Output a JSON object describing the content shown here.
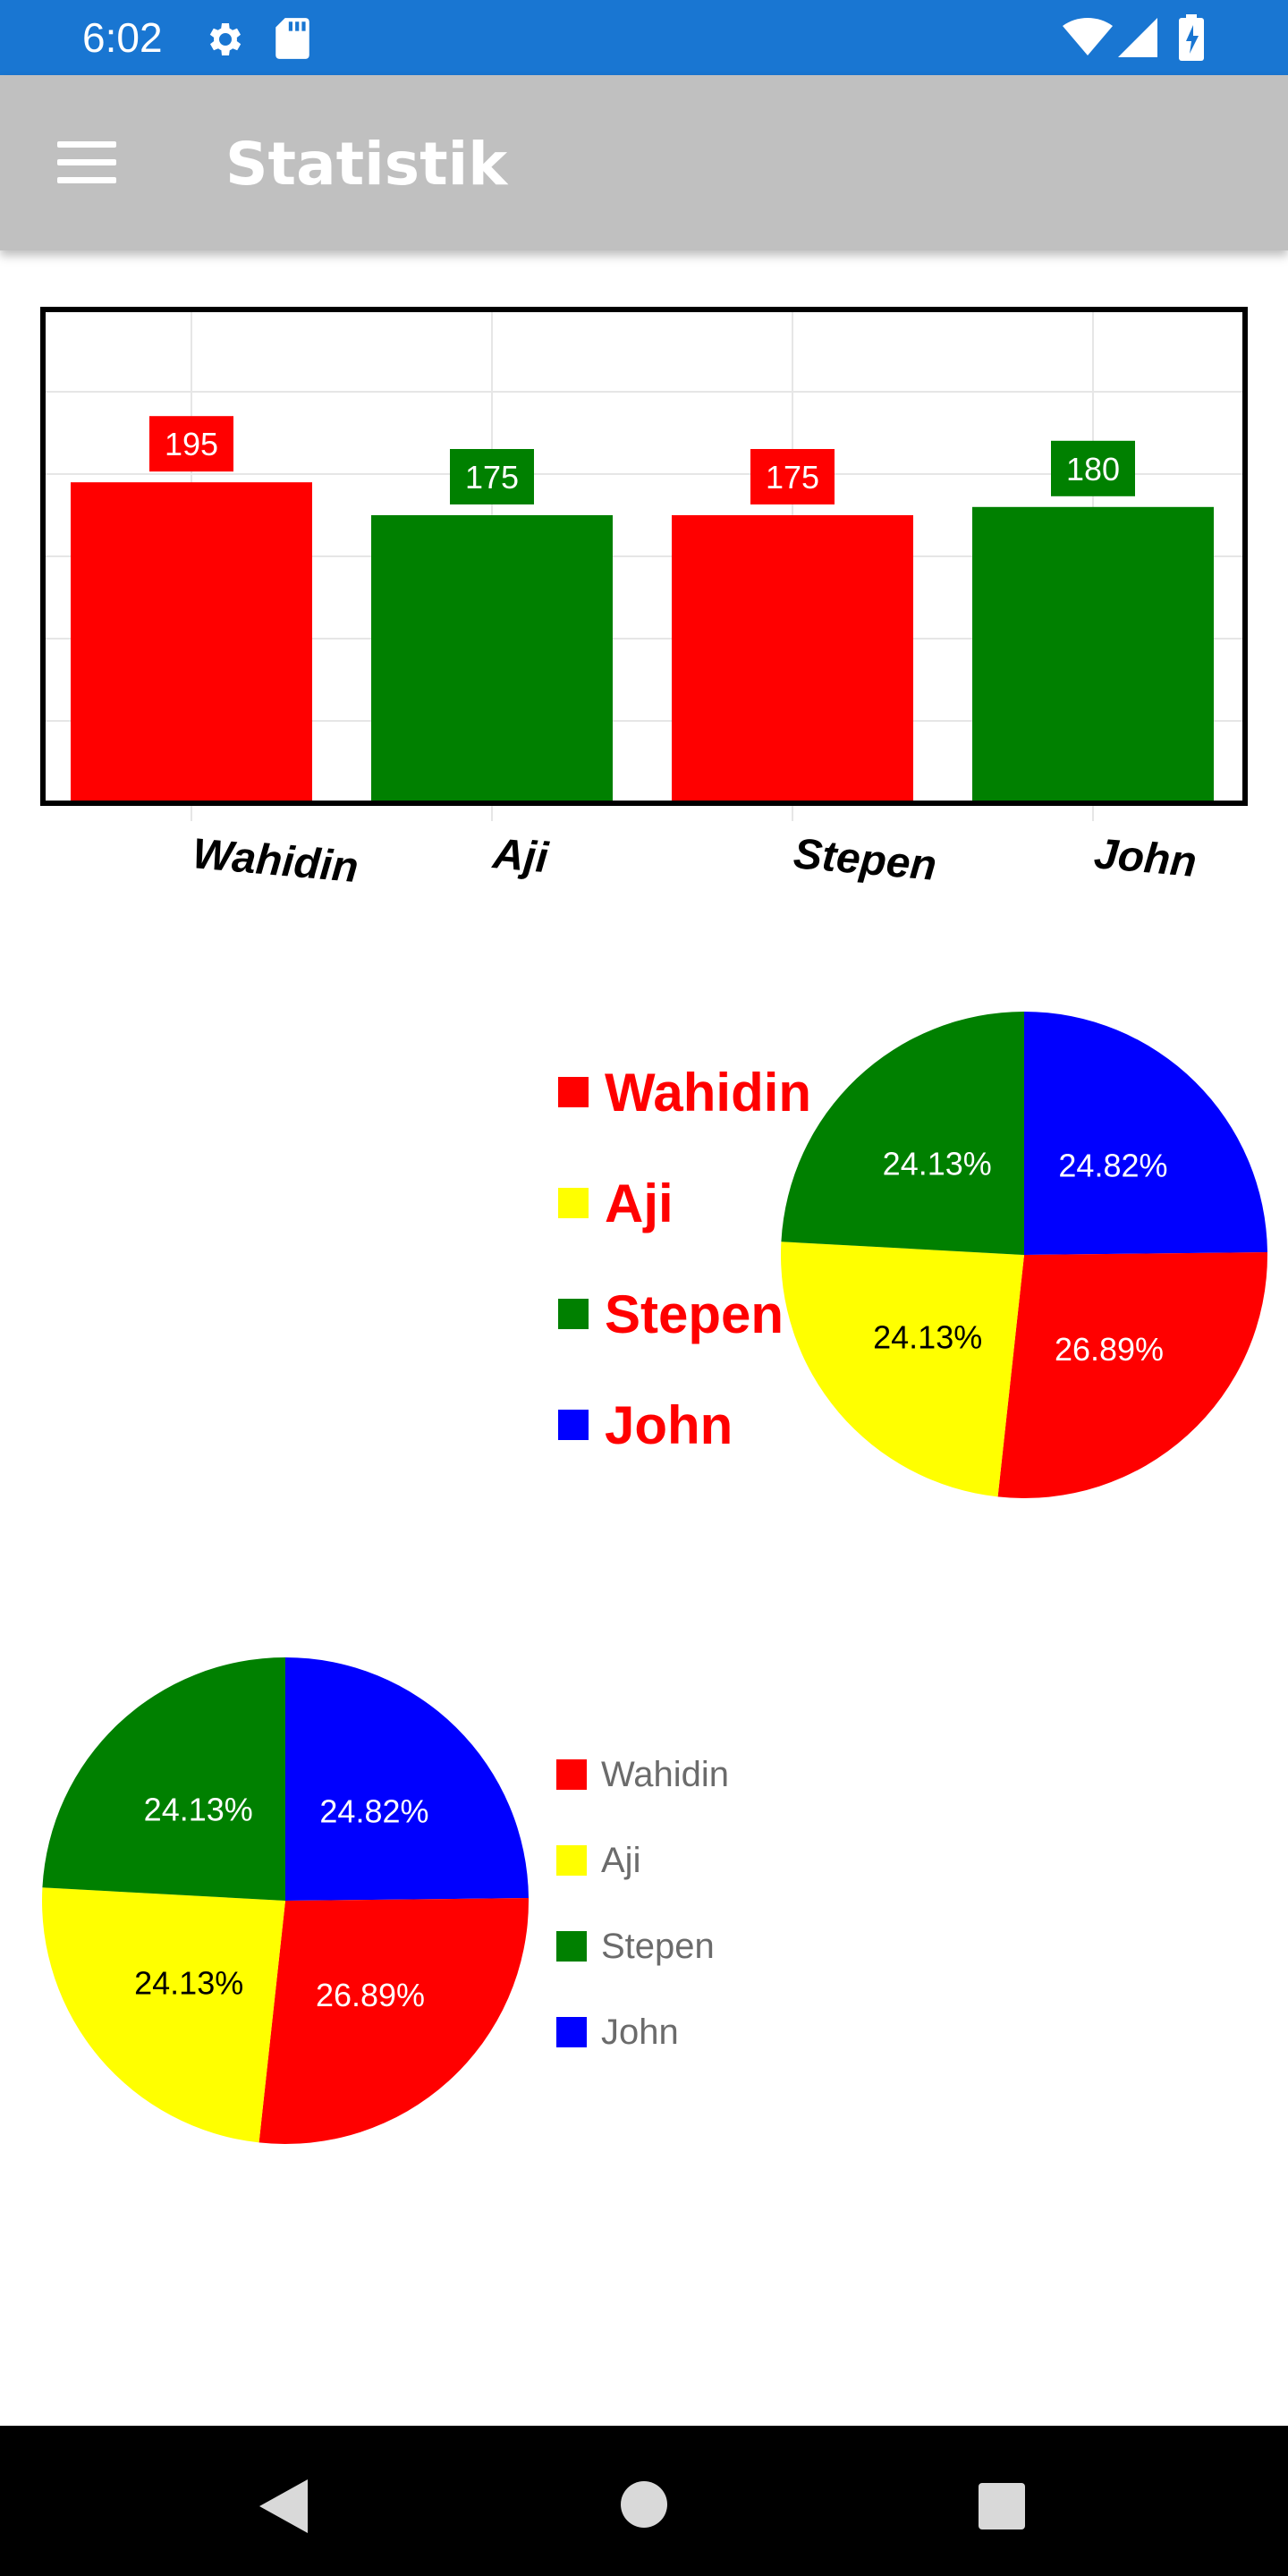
{
  "status_bar": {
    "time": "6:02",
    "icons": [
      "gear-icon",
      "sd-card-icon",
      "wifi-icon",
      "cell-signal-icon",
      "battery-charging-icon"
    ]
  },
  "app_bar": {
    "title": "Statistik",
    "menu_icon": "hamburger-menu-icon"
  },
  "colors": {
    "red": "#ff0000",
    "green": "#008000",
    "yellow": "#ffff00",
    "blue": "#0000ff",
    "app_bar": "#c0c0c0",
    "status_bar": "#1976d2"
  },
  "chart_data": [
    {
      "type": "bar",
      "categories": [
        "Wahidin",
        "Aji",
        "Stepen",
        "John"
      ],
      "values": [
        195,
        175,
        175,
        180
      ],
      "colors": [
        "#ff0000",
        "#008000",
        "#ff0000",
        "#008000"
      ],
      "title": "",
      "xlabel": "",
      "ylabel": "",
      "ylim": [
        0,
        300
      ],
      "grid": true,
      "data_labels": [
        "195",
        "175",
        "175",
        "180"
      ]
    },
    {
      "type": "pie",
      "labels": [
        "Wahidin",
        "Aji",
        "Stepen",
        "John"
      ],
      "values": [
        26.89,
        24.13,
        24.13,
        24.82
      ],
      "value_labels": [
        "26.89%",
        "24.13%",
        "24.13%",
        "24.82%"
      ],
      "colors": [
        "#ff0000",
        "#ffff00",
        "#008000",
        "#0000ff"
      ],
      "legend_placement": "left",
      "legend_style": "large-bold-red"
    },
    {
      "type": "pie",
      "labels": [
        "Wahidin",
        "Aji",
        "Stepen",
        "John"
      ],
      "values": [
        26.89,
        24.13,
        24.13,
        24.82
      ],
      "value_labels": [
        "26.89%",
        "24.13%",
        "24.13%",
        "24.82%"
      ],
      "colors": [
        "#ff0000",
        "#ffff00",
        "#008000",
        "#0000ff"
      ],
      "legend_placement": "right",
      "legend_style": "small-gray"
    }
  ],
  "nav_bar": {
    "icons": [
      "back-icon",
      "home-icon",
      "recents-icon"
    ]
  }
}
